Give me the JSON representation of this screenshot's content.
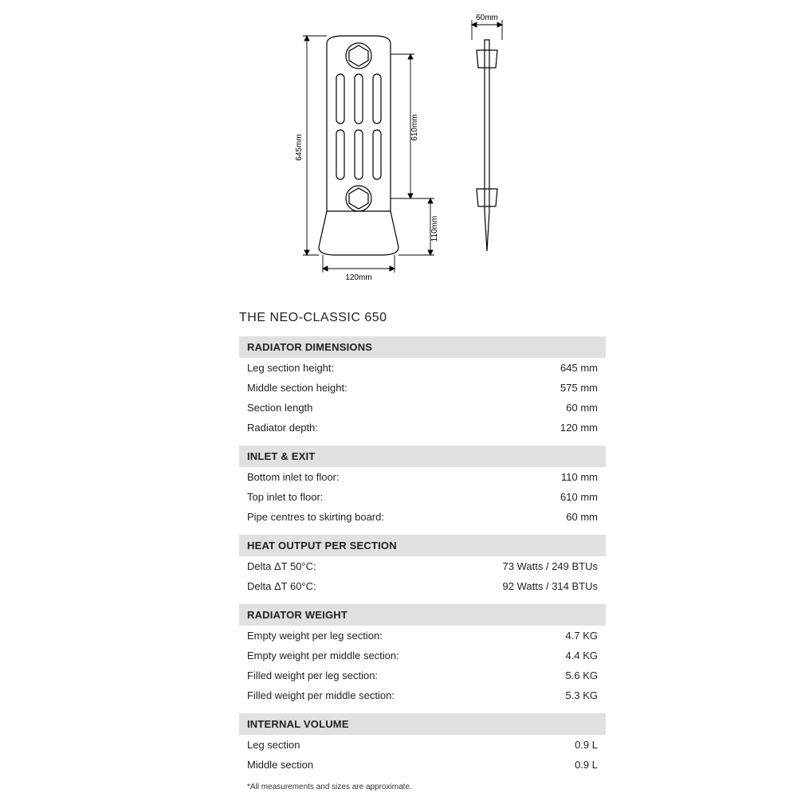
{
  "title": "THE NEO-CLASSIC 650",
  "diagram": {
    "labels": {
      "top_depth": "60mm",
      "left_height": "645mm",
      "right_inner": "610mm",
      "lower_right": "110mm",
      "bottom_width": "120mm"
    },
    "stroke": "#000000",
    "stroke_width": 1.2,
    "text_color": "#000000",
    "font_size": 10,
    "background": "#ffffff"
  },
  "sections": [
    {
      "header": "RADIATOR DIMENSIONS",
      "rows": [
        {
          "label": "Leg section height:",
          "value": "645 mm"
        },
        {
          "label": "Middle section height:",
          "value": "575 mm"
        },
        {
          "label": "Section length",
          "value": "60 mm"
        },
        {
          "label": "Radiator depth:",
          "value": "120 mm"
        }
      ]
    },
    {
      "header": "INLET & EXIT",
      "rows": [
        {
          "label": "Bottom inlet to floor:",
          "value": "110 mm"
        },
        {
          "label": "Top inlet to floor:",
          "value": "610 mm"
        },
        {
          "label": "Pipe centres to skirting board:",
          "value": "60 mm"
        }
      ]
    },
    {
      "header": "HEAT OUTPUT PER SECTION",
      "rows": [
        {
          "label": "Delta ΔT 50°C:",
          "value": "73 Watts / 249 BTUs"
        },
        {
          "label": "Delta ΔT 60°C:",
          "value": "92 Watts / 314 BTUs"
        }
      ]
    },
    {
      "header": "RADIATOR WEIGHT",
      "rows": [
        {
          "label": "Empty weight per leg section:",
          "value": "4.7 KG"
        },
        {
          "label": "Empty weight per middle section:",
          "value": "4.4 KG"
        },
        {
          "label": "Filled weight per leg section:",
          "value": "5.6 KG"
        },
        {
          "label": "Filled weight per middle section:",
          "value": "5.3 KG"
        }
      ]
    },
    {
      "header": "INTERNAL VOLUME",
      "rows": [
        {
          "label": "Leg section",
          "value": "0.9 L"
        },
        {
          "label": "Middle section",
          "value": "0.9 L"
        }
      ]
    }
  ],
  "footnote": "All measurements and sizes are approximate."
}
